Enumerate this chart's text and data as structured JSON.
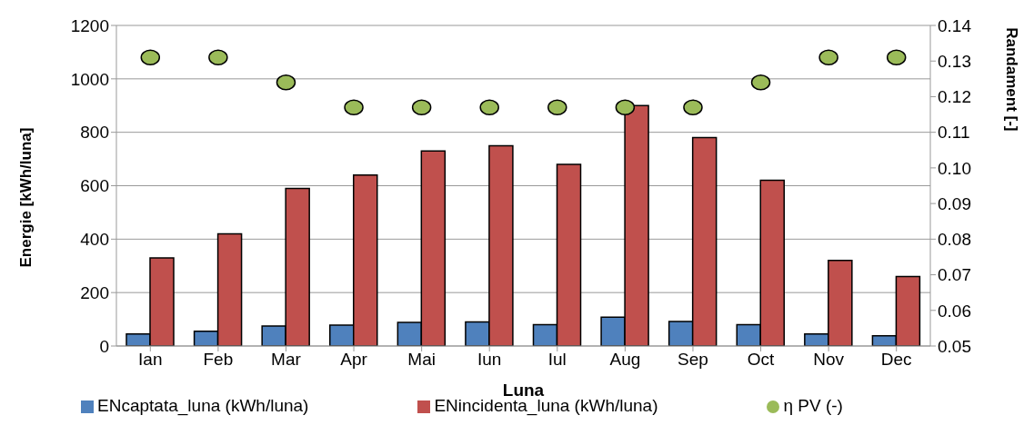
{
  "chart_data": {
    "type": "bar",
    "xlabel": "Luna",
    "ylabel": "Energie  [kWh/luna]",
    "y2label": "Randament [-]",
    "categories": [
      "Ian",
      "Feb",
      "Mar",
      "Apr",
      "Mai",
      "Iun",
      "Iul",
      "Aug",
      "Sep",
      "Oct",
      "Nov",
      "Dec"
    ],
    "series": [
      {
        "name": "ENcaptata_luna (kWh/luna)",
        "color": "#4f81bd",
        "values": [
          45,
          55,
          75,
          78,
          88,
          90,
          80,
          108,
          92,
          80,
          45,
          38
        ]
      },
      {
        "name": "ENincidenta_luna (kWh/luna)",
        "color": "#c0504d",
        "values": [
          330,
          420,
          590,
          640,
          730,
          750,
          680,
          900,
          780,
          620,
          320,
          260
        ]
      },
      {
        "name": "η PV (-)",
        "type": "scatter",
        "axis": "y2",
        "color": "#9bbb59",
        "marker": "circle",
        "values": [
          0.131,
          0.131,
          0.124,
          0.117,
          0.117,
          0.117,
          0.117,
          0.117,
          0.117,
          0.124,
          0.131,
          0.131
        ]
      }
    ],
    "ylim": [
      0,
      1200
    ],
    "yticks": [
      0,
      200,
      400,
      600,
      800,
      1000,
      1200
    ],
    "y2lim": [
      0.05,
      0.14
    ],
    "y2ticks": [
      {
        "value": 0.05,
        "label": "0.05"
      },
      {
        "value": 0.06,
        "label": "0.06"
      },
      {
        "value": 0.07,
        "label": "0.07"
      },
      {
        "value": 0.08,
        "label": "0.08"
      },
      {
        "value": 0.09,
        "label": "0.09"
      },
      {
        "value": 0.1,
        "label": "0.10"
      },
      {
        "value": 0.11,
        "label": "0.11"
      },
      {
        "value": 0.12,
        "label": "0.12"
      },
      {
        "value": 0.13,
        "label": "0.13"
      },
      {
        "value": 0.14,
        "label": "0.14"
      }
    ],
    "grid": "y",
    "legend": "bottom"
  }
}
